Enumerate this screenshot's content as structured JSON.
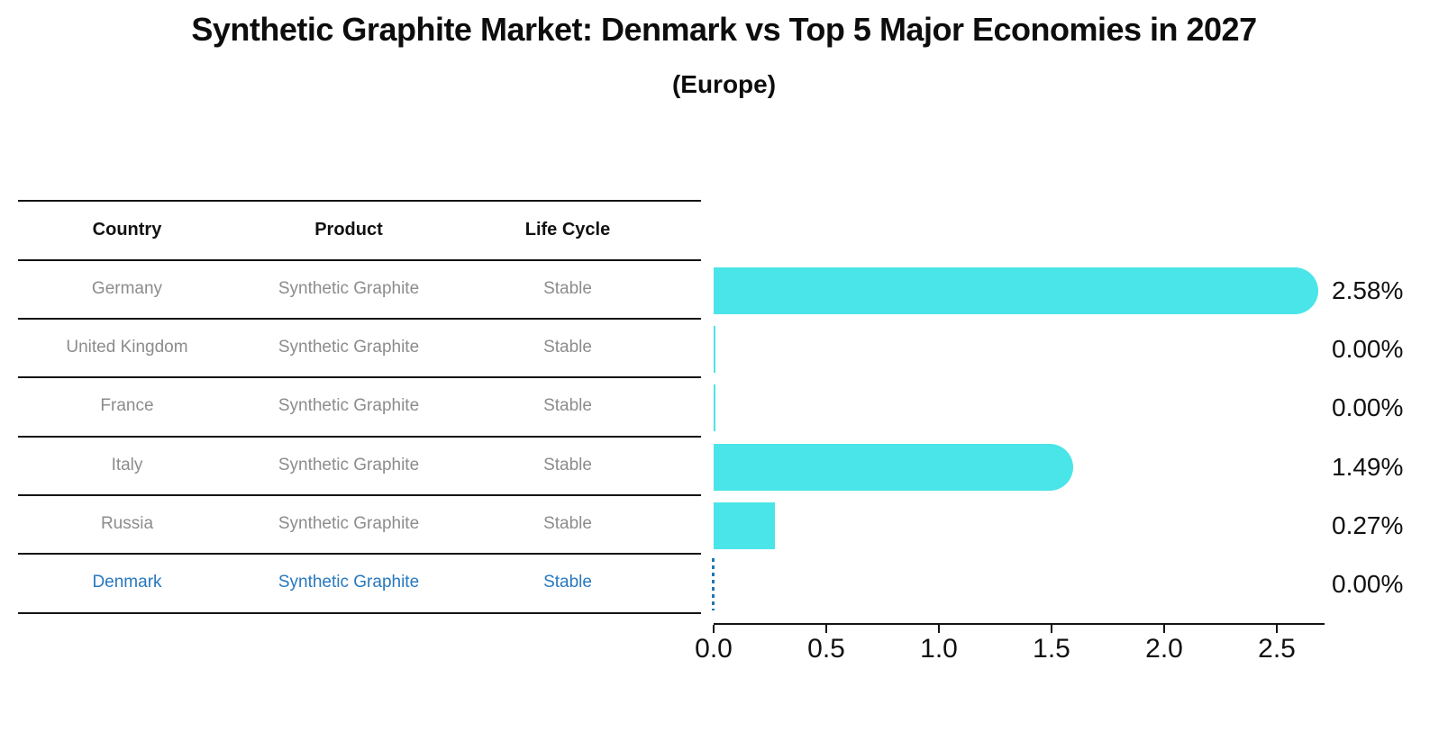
{
  "title": "Synthetic Graphite Market: Denmark vs Top 5 Major Economies in 2027",
  "subtitle": "(Europe)",
  "colors": {
    "bar": "#4ae5e8",
    "highlight_text": "#2878be",
    "highlight_dash": "#1f77b4",
    "table_text": "#8c8c8c",
    "line": "#141414"
  },
  "table": {
    "headers": [
      "Country",
      "Product",
      "Life Cycle"
    ],
    "rows": [
      {
        "country": "Germany",
        "product": "Synthetic Graphite",
        "life_cycle": "Stable",
        "highlight": false
      },
      {
        "country": "United Kingdom",
        "product": "Synthetic Graphite",
        "life_cycle": "Stable",
        "highlight": false
      },
      {
        "country": "France",
        "product": "Synthetic Graphite",
        "life_cycle": "Stable",
        "highlight": false
      },
      {
        "country": "Italy",
        "product": "Synthetic Graphite",
        "life_cycle": "Stable",
        "highlight": false
      },
      {
        "country": "Russia",
        "product": "Synthetic Graphite",
        "life_cycle": "Stable",
        "highlight": false
      },
      {
        "country": "Denmark",
        "product": "Synthetic Graphite",
        "life_cycle": "Stable",
        "highlight": true
      }
    ]
  },
  "chart_data": {
    "type": "bar",
    "orientation": "horizontal",
    "title": "Synthetic Graphite Market: Denmark vs Top 5 Major Economies in 2027",
    "subtitle": "(Europe)",
    "categories": [
      "Germany",
      "United Kingdom",
      "France",
      "Italy",
      "Russia",
      "Denmark"
    ],
    "values": [
      2.58,
      0.0,
      0.0,
      1.49,
      0.27,
      0.0
    ],
    "value_labels": [
      "2.58%",
      "0.00%",
      "0.00%",
      "1.49%",
      "0.27%",
      "0.00%"
    ],
    "highlight_category": "Denmark",
    "xlabel": "",
    "ylabel": "",
    "xlim": [
      0,
      2.7
    ],
    "xticks": [
      "0.0",
      "0.5",
      "1.0",
      "1.5",
      "2.0",
      "2.5"
    ],
    "xtick_values": [
      0,
      0.5,
      1.0,
      1.5,
      2.0,
      2.5
    ],
    "grid": false,
    "legend": false,
    "bar_color": "#4ae5e8"
  }
}
